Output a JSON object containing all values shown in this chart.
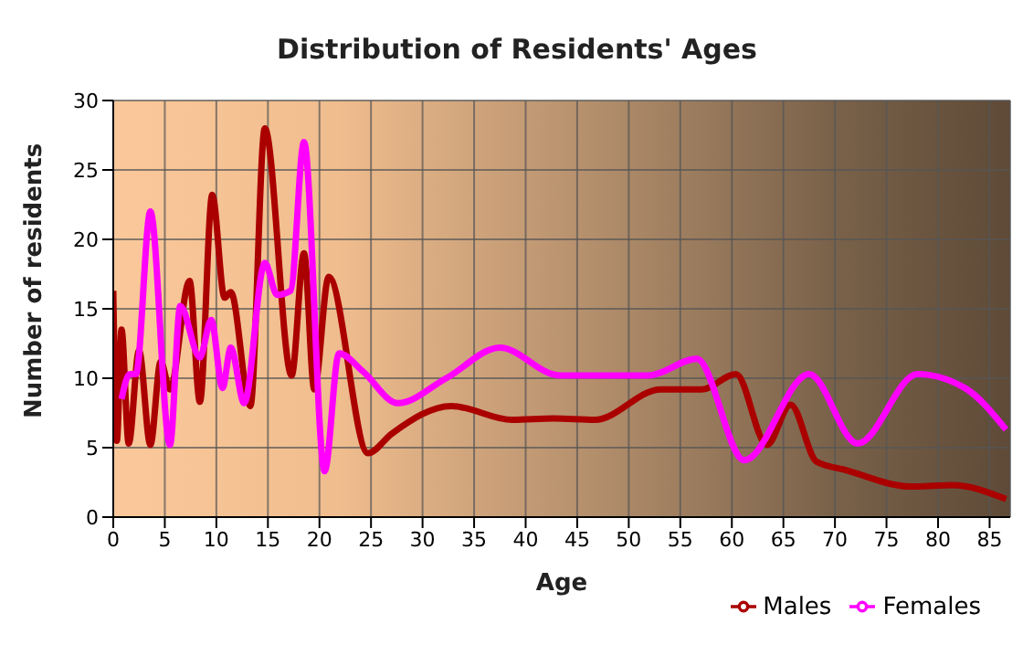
{
  "chart_data": {
    "type": "line",
    "title": "Distribution of Residents' Ages",
    "xlabel": "Age",
    "ylabel": "Number of residents",
    "xlim": [
      0,
      87
    ],
    "xticks": [
      0,
      5,
      10,
      15,
      20,
      25,
      30,
      35,
      40,
      45,
      50,
      55,
      60,
      65,
      70,
      75,
      80,
      85
    ],
    "ylim": [
      0,
      30
    ],
    "yticks": [
      0,
      5,
      10,
      15,
      20,
      25,
      30
    ],
    "grid": true,
    "legend": "bottom right",
    "marker": "none",
    "line_style": "solid",
    "series": [
      {
        "name": "Males",
        "color": "#aa0000",
        "x": [
          0,
          0.35,
          0.8,
          1.5,
          2.5,
          3.6,
          4.6,
          5.5,
          7.4,
          8.4,
          9.6,
          10.8,
          11.4,
          13.3,
          14.7,
          17.3,
          18.5,
          19.5,
          20.9,
          24.7,
          27,
          32.8,
          38.7,
          42.7,
          46.7,
          53.1,
          57.1,
          60.4,
          63.4,
          65.7,
          68.2,
          71,
          77.4,
          81.4,
          86.6
        ],
        "values": [
          16.3,
          5.5,
          13.5,
          5.3,
          12,
          5.2,
          11.2,
          9.2,
          17,
          8.3,
          23.2,
          15.8,
          16.2,
          8,
          28,
          10.2,
          19,
          9.2,
          17.3,
          4.6,
          6,
          8,
          7,
          7.1,
          7,
          9.2,
          9.2,
          10.3,
          5.2,
          8.1,
          4,
          3.4,
          2.2,
          2.3,
          1.3
        ]
      },
      {
        "name": "Females",
        "color": "#ff00ff",
        "x": [
          0.8,
          1.6,
          2.2,
          3.6,
          5.5,
          6.5,
          8.4,
          9.5,
          10.6,
          11.4,
          12.7,
          14.7,
          15.9,
          17.2,
          18.5,
          20.5,
          21.9,
          24.2,
          27.6,
          32.3,
          37.5,
          43.3,
          51.9,
          56.6,
          61.2,
          67.5,
          72.2,
          78,
          82.6,
          86.6
        ],
        "values": [
          8.5,
          10.3,
          10.3,
          22,
          5.2,
          15.2,
          11.5,
          14.2,
          9.3,
          12.2,
          8.2,
          18.3,
          16,
          16.3,
          27,
          3.3,
          11.8,
          10.5,
          8.2,
          10,
          12.2,
          10.2,
          10.2,
          11.4,
          4.1,
          10.3,
          5.3,
          10.3,
          9.3,
          6.3
        ]
      }
    ]
  }
}
